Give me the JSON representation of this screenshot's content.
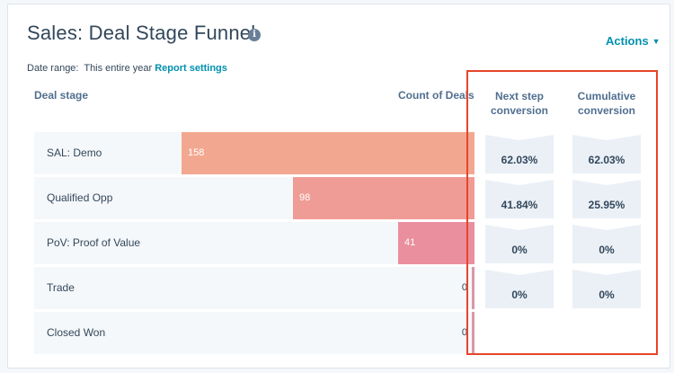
{
  "report": {
    "title": "Sales: Deal Stage Funnel",
    "info_icon": "info-icon",
    "actions_label": "Actions",
    "date_range_label": "Date range:",
    "date_range_value": "This entire year",
    "settings_link": "Report settings"
  },
  "columns": {
    "stage": "Deal stage",
    "count": "Count of Deals",
    "next": "Next step conversion",
    "cumulative": "Cumulative conversion"
  },
  "colors": {
    "accent_link": "#0091ae",
    "highlight_border": "#e8442b",
    "bar_colors": [
      "#f2a890",
      "#ef9c96",
      "#ea8f9d",
      "#d89aa7",
      "#d89aa7"
    ]
  },
  "chart_data": {
    "type": "bar",
    "orientation": "horizontal-funnel",
    "categories": [
      "SAL: Demo",
      "Qualified Opp",
      "PoV: Proof of Value",
      "Trade",
      "Closed Won"
    ],
    "values": [
      158,
      98,
      41,
      0,
      0
    ],
    "xlim": [
      0,
      158
    ]
  },
  "stages": [
    {
      "label": "SAL: Demo",
      "count": "158",
      "next": "62.03%",
      "cumulative": "62.03%"
    },
    {
      "label": "Qualified Opp",
      "count": "98",
      "next": "41.84%",
      "cumulative": "25.95%"
    },
    {
      "label": "PoV: Proof of Value",
      "count": "41",
      "next": "0%",
      "cumulative": "0%"
    },
    {
      "label": "Trade",
      "count": "0",
      "next": "0%",
      "cumulative": "0%"
    },
    {
      "label": "Closed Won",
      "count": "0"
    }
  ]
}
